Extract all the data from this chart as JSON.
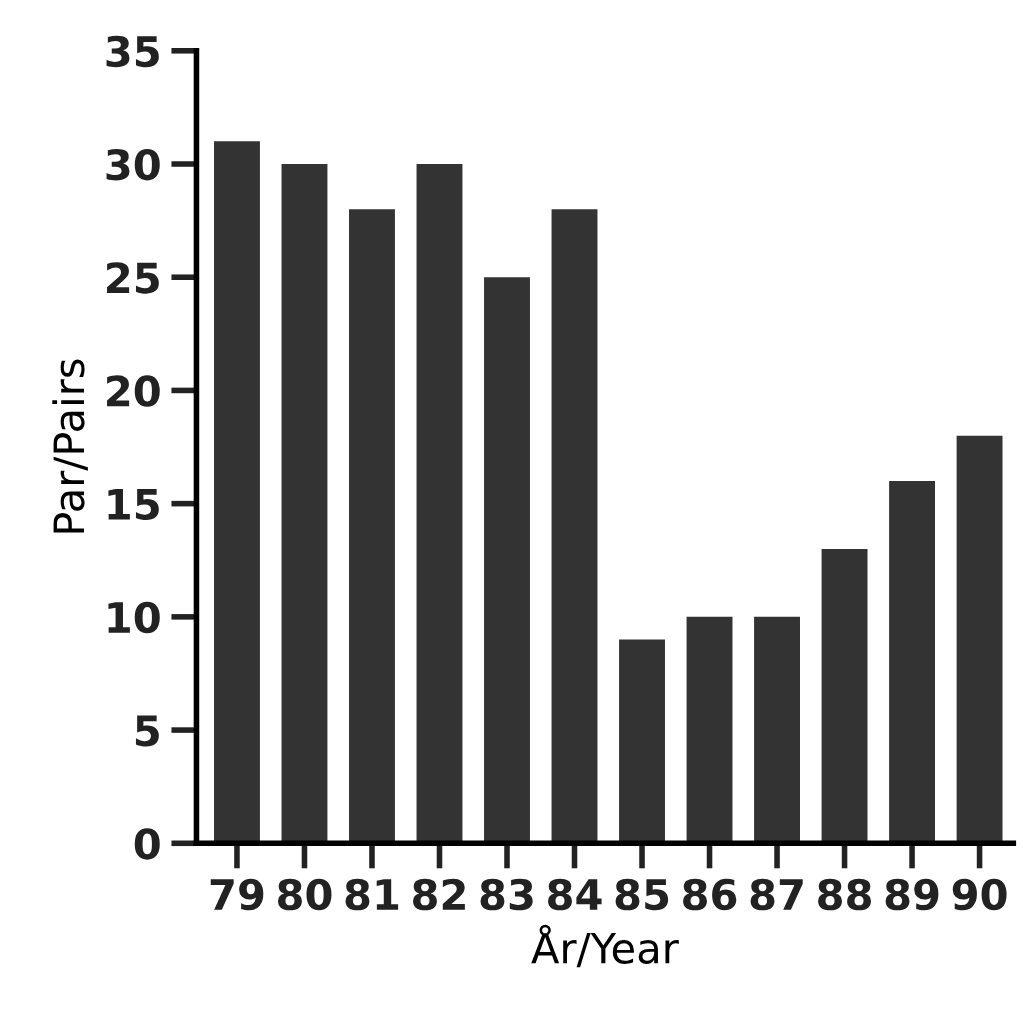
{
  "chart_data": {
    "type": "bar",
    "xlabel": "År/Year",
    "ylabel": "Par/Pairs",
    "categories": [
      "79",
      "80",
      "81",
      "82",
      "83",
      "84",
      "85",
      "86",
      "87",
      "88",
      "89",
      "90"
    ],
    "values": [
      31,
      30,
      28,
      30,
      25,
      28,
      9,
      10,
      10,
      13,
      16,
      18
    ],
    "color": "#333333",
    "ylim": [
      0,
      35
    ],
    "yticks": [
      0,
      5,
      10,
      15,
      20,
      25,
      30,
      35
    ],
    "grid": false
  }
}
